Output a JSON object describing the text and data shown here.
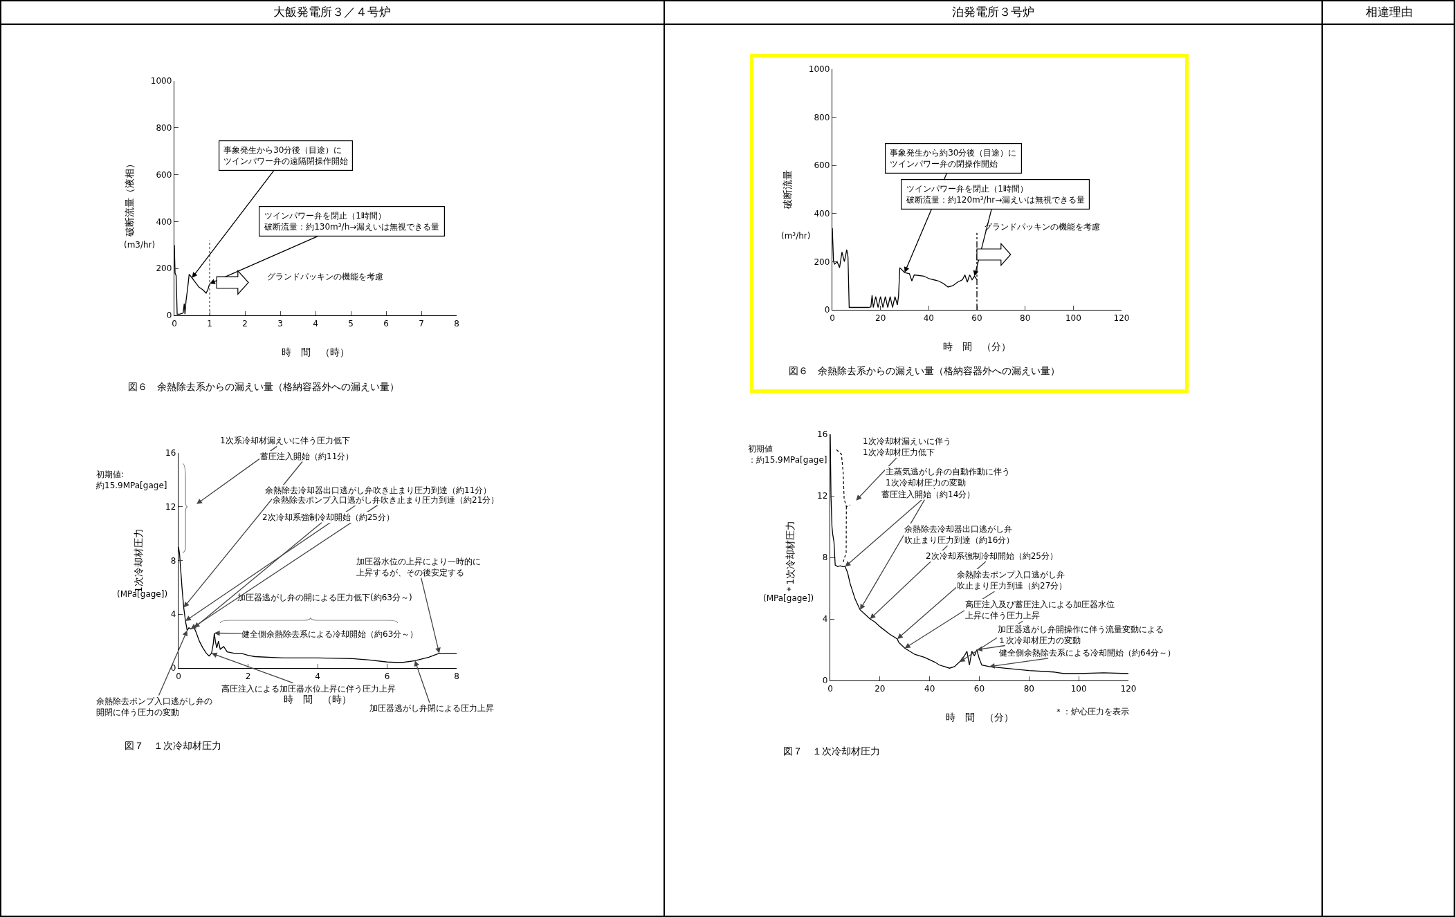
{
  "chart_data": [
    {
      "type": "line",
      "title": "図６　余熱除去系からの漏えい量（格納容器外への漏えい量）",
      "xlabel": "時　間　（時）",
      "ylabel": "破断流量（液相）",
      "x": [
        0,
        0.02,
        0.05,
        0.08,
        0.15,
        0.25,
        0.28,
        0.3,
        0.33,
        0.38,
        0.42,
        0.5,
        0.6,
        0.7,
        0.8,
        0.9,
        0.95,
        1.0
      ],
      "series": [
        {
          "color": "#000000",
          "values": [
            300,
            180,
            170,
            5,
            5,
            10,
            50,
            5,
            60,
            120,
            175,
            160,
            140,
            120,
            110,
            95,
            110,
            135
          ]
        }
      ],
      "xlim": [
        0,
        8
      ],
      "xticks": [
        0,
        1,
        2,
        3,
        4,
        5,
        6,
        7,
        8
      ],
      "ylim": [
        0,
        1000
      ],
      "yticks": [
        0,
        200,
        400,
        600,
        800,
        1000
      ],
      "ref_lines": [
        {
          "axis": "x",
          "value": 1,
          "line_style": "dotted",
          "color": "#555555"
        }
      ],
      "annotations": [
        {
          "text": "事象発生から30分後（目途）にツインパワー弁の遠隔閉操作開始",
          "x": 0.5,
          "y": 160
        },
        {
          "text": "ツインパワー弁を閉止（1時間）破断流量：約130m³/h→漏えいは無視できる量",
          "x": 1.0,
          "y": 135
        },
        "グランドパッキンの機能を考慮",
        "(m3/hr)"
      ]
    },
    {
      "type": "line",
      "title": "図７　１次冷却材圧力",
      "xlabel": "時　間　（時）",
      "ylabel": "1次冷却材圧力",
      "x": [
        0,
        0.03,
        0.1,
        0.15,
        0.2,
        0.25,
        0.3,
        0.35,
        0.45,
        0.5,
        0.6,
        0.7,
        0.8,
        0.88,
        0.95,
        1.0,
        1.03,
        1.06,
        1.1,
        1.15,
        1.2,
        1.3,
        1.4,
        1.6,
        1.8,
        2.0,
        2.2,
        3,
        4,
        5,
        5.5,
        6,
        6.4,
        6.8,
        7.2,
        7.5,
        7.8,
        8
      ],
      "series": [
        {
          "color": "#000000",
          "values": [
            9,
            8.5,
            6,
            4.5,
            3.5,
            2.8,
            3.0,
            2.9,
            3.0,
            2.7,
            2.0,
            1.5,
            1.1,
            0.9,
            1.1,
            1.8,
            2.6,
            2.0,
            1.5,
            2.0,
            1.4,
            1.6,
            1.2,
            1.1,
            1.1,
            0.95,
            0.85,
            0.75,
            0.75,
            0.7,
            0.6,
            0.45,
            0.4,
            0.55,
            0.8,
            1.1,
            1.1,
            1.1
          ]
        }
      ],
      "xlim": [
        0,
        8
      ],
      "xticks": [
        0,
        2,
        4,
        6,
        8
      ],
      "ylim": [
        0,
        16
      ],
      "yticks": [
        0,
        4,
        8,
        12,
        16
      ],
      "annotations": [
        "1次系冷却材漏えいに伴う圧力低下",
        {
          "text": "蓄圧注入開始（約11分）",
          "x": 0.15,
          "y": 4.5
        },
        {
          "text": "余熱除去冷却器出口逃がし弁吹き止まり圧力到達（約11分）",
          "x": 0.2,
          "y": 3.5
        },
        {
          "text": "余熱除去ポンプ入口逃がし弁吹き止まり圧力到達（約21分）",
          "x": 0.35,
          "y": 2.9
        },
        {
          "text": "2次冷却系強制冷却開始（約25分）",
          "x": 0.45,
          "y": 3.0
        },
        {
          "text": "加圧器水位の上昇により一時的に上昇するが、その後安定する",
          "x": 7.5,
          "y": 1.1
        },
        "加圧器逃がし弁の開による圧力低下(約63分～)",
        {
          "text": "健全側余熱除去系による冷却開始（約63分～）",
          "x": 1.03,
          "y": 2.6
        },
        {
          "text": "高圧注入による加圧器水位上昇に伴う圧力上昇",
          "x": 0.95,
          "y": 1.1
        },
        {
          "text": "余熱除去ポンプ入口逃がし弁の開閉に伴う圧力の変動",
          "x": 0.25,
          "y": 2.8
        },
        {
          "text": "加圧器逃がし弁閉による圧力上昇",
          "x": 6.8,
          "y": 0.55
        },
        "初期値:約15.9MPa[gage]",
        "(MPa[gage])"
      ]
    },
    {
      "type": "line",
      "title": "図６　余熱除去系からの漏えい量（格納容器外への漏えい量）",
      "xlabel": "時　間　（分）",
      "ylabel": "破断流量",
      "x": [
        0,
        0.5,
        1,
        2,
        3,
        4,
        5,
        6,
        6.5,
        7,
        10,
        15,
        16,
        16.5,
        17,
        18,
        19,
        20,
        21,
        22,
        23,
        24,
        25,
        26,
        27,
        27.5,
        28,
        30,
        32,
        33,
        34,
        38,
        40,
        42,
        44,
        46,
        48,
        50,
        52,
        54,
        55,
        56,
        57,
        58,
        59,
        60
      ],
      "series": [
        {
          "color": "#000000",
          "values": [
            340,
            200,
            190,
            200,
            175,
            240,
            200,
            250,
            220,
            10,
            10,
            10,
            12,
            60,
            10,
            55,
            10,
            55,
            10,
            55,
            10,
            55,
            10,
            55,
            20,
            60,
            175,
            155,
            150,
            120,
            145,
            140,
            130,
            125,
            120,
            110,
            95,
            100,
            115,
            125,
            145,
            115,
            145,
            125,
            140,
            125
          ]
        }
      ],
      "xlim": [
        0,
        120
      ],
      "xticks": [
        0,
        20,
        40,
        60,
        80,
        100,
        120
      ],
      "ylim": [
        0,
        1000
      ],
      "yticks": [
        0,
        200,
        400,
        600,
        800,
        1000
      ],
      "ref_lines": [
        {
          "axis": "x",
          "value": 60,
          "line_style": "dashed",
          "color": "#000000"
        }
      ],
      "annotations": [
        {
          "text": "事象発生から約30分後（目途）にツインパワー弁の閉操作開始",
          "x": 30,
          "y": 155
        },
        {
          "text": "ツインパワー弁を閉止（1時間）破断流量：約120m³/hr→漏えいは無視できる量",
          "x": 59,
          "y": 140
        },
        "グランドパッキンの機能を考慮",
        "(m³/hr)"
      ]
    },
    {
      "type": "line",
      "title": "図７　１次冷却材圧力",
      "xlabel": "時　間　（分）",
      "ylabel": "＊1次冷却材圧力",
      "x": [
        0,
        0.3,
        0.7,
        1,
        1.5,
        2,
        3,
        4,
        5,
        6,
        7,
        8,
        10,
        12,
        14,
        16,
        18,
        20,
        24,
        27,
        27.5,
        28,
        30,
        34,
        38,
        42,
        44,
        46,
        48,
        50,
        52,
        54,
        55,
        56,
        57,
        58,
        59,
        60,
        61,
        64,
        70,
        80,
        90,
        94,
        100,
        110,
        120
      ],
      "series": [
        {
          "color": "#000000",
          "values": [
            16,
            12,
            10,
            9.5,
            9,
            7.5,
            7.4,
            7.45,
            7.4,
            7.4,
            7.0,
            6.3,
            5.3,
            4.6,
            4.3,
            4.0,
            3.8,
            3.5,
            3.0,
            2.7,
            2.5,
            2.4,
            2.1,
            1.7,
            1.5,
            1.2,
            1.0,
            0.9,
            0.8,
            0.9,
            1.2,
            1.6,
            1.9,
            1.0,
            1.9,
            1.6,
            2.0,
            1.4,
            1.0,
            0.9,
            0.8,
            0.65,
            0.55,
            0.45,
            0.45,
            0.5,
            0.45
          ]
        }
      ],
      "xlim": [
        0,
        120
      ],
      "xticks": [
        0,
        20,
        40,
        60,
        80,
        100,
        120
      ],
      "ylim": [
        0,
        16
      ],
      "yticks": [
        0,
        4,
        8,
        12,
        16
      ],
      "annotations": [
        "1次冷却材漏えいに伴う1次冷却材圧力低下",
        {
          "text": "主蒸気逃がし弁の自動作動に伴う1次冷却材圧力の変動",
          "x": 6,
          "y": 7.4
        },
        {
          "text": "蓄圧注入開始（約14分）",
          "x": 12,
          "y": 4.6
        },
        {
          "text": "余熱除去冷却器出口逃がし弁吹止まり圧力到達（約16分）",
          "x": 16,
          "y": 4.0
        },
        {
          "text": "2次冷却系強制冷却開始（約25分）",
          "x": 27,
          "y": 2.7
        },
        {
          "text": "余熱除去ポンプ入口逃がし弁吹止まり圧力到達（約27分）",
          "x": 30,
          "y": 2.1
        },
        {
          "text": "高圧注入及び蓄圧注入による加圧器水位上昇に伴う圧力上昇",
          "x": 52,
          "y": 1.2
        },
        {
          "text": "加圧器逃がし弁開操作に伴う流量変動による１次冷却材圧力の変動",
          "x": 59,
          "y": 2.0
        },
        {
          "text": "健全側余熱除去系による冷却開始（約64分～）",
          "x": 64,
          "y": 0.9
        },
        "初期値：約15.9MPa[gage]",
        "(MPa[gage])",
        "＊：炉心圧力を表示"
      ]
    },
    {
      "type": "other",
      "annotations": [
        "大飯発電所３／４号炉",
        "泊発電所３号炉",
        "相違理由"
      ]
    }
  ]
}
